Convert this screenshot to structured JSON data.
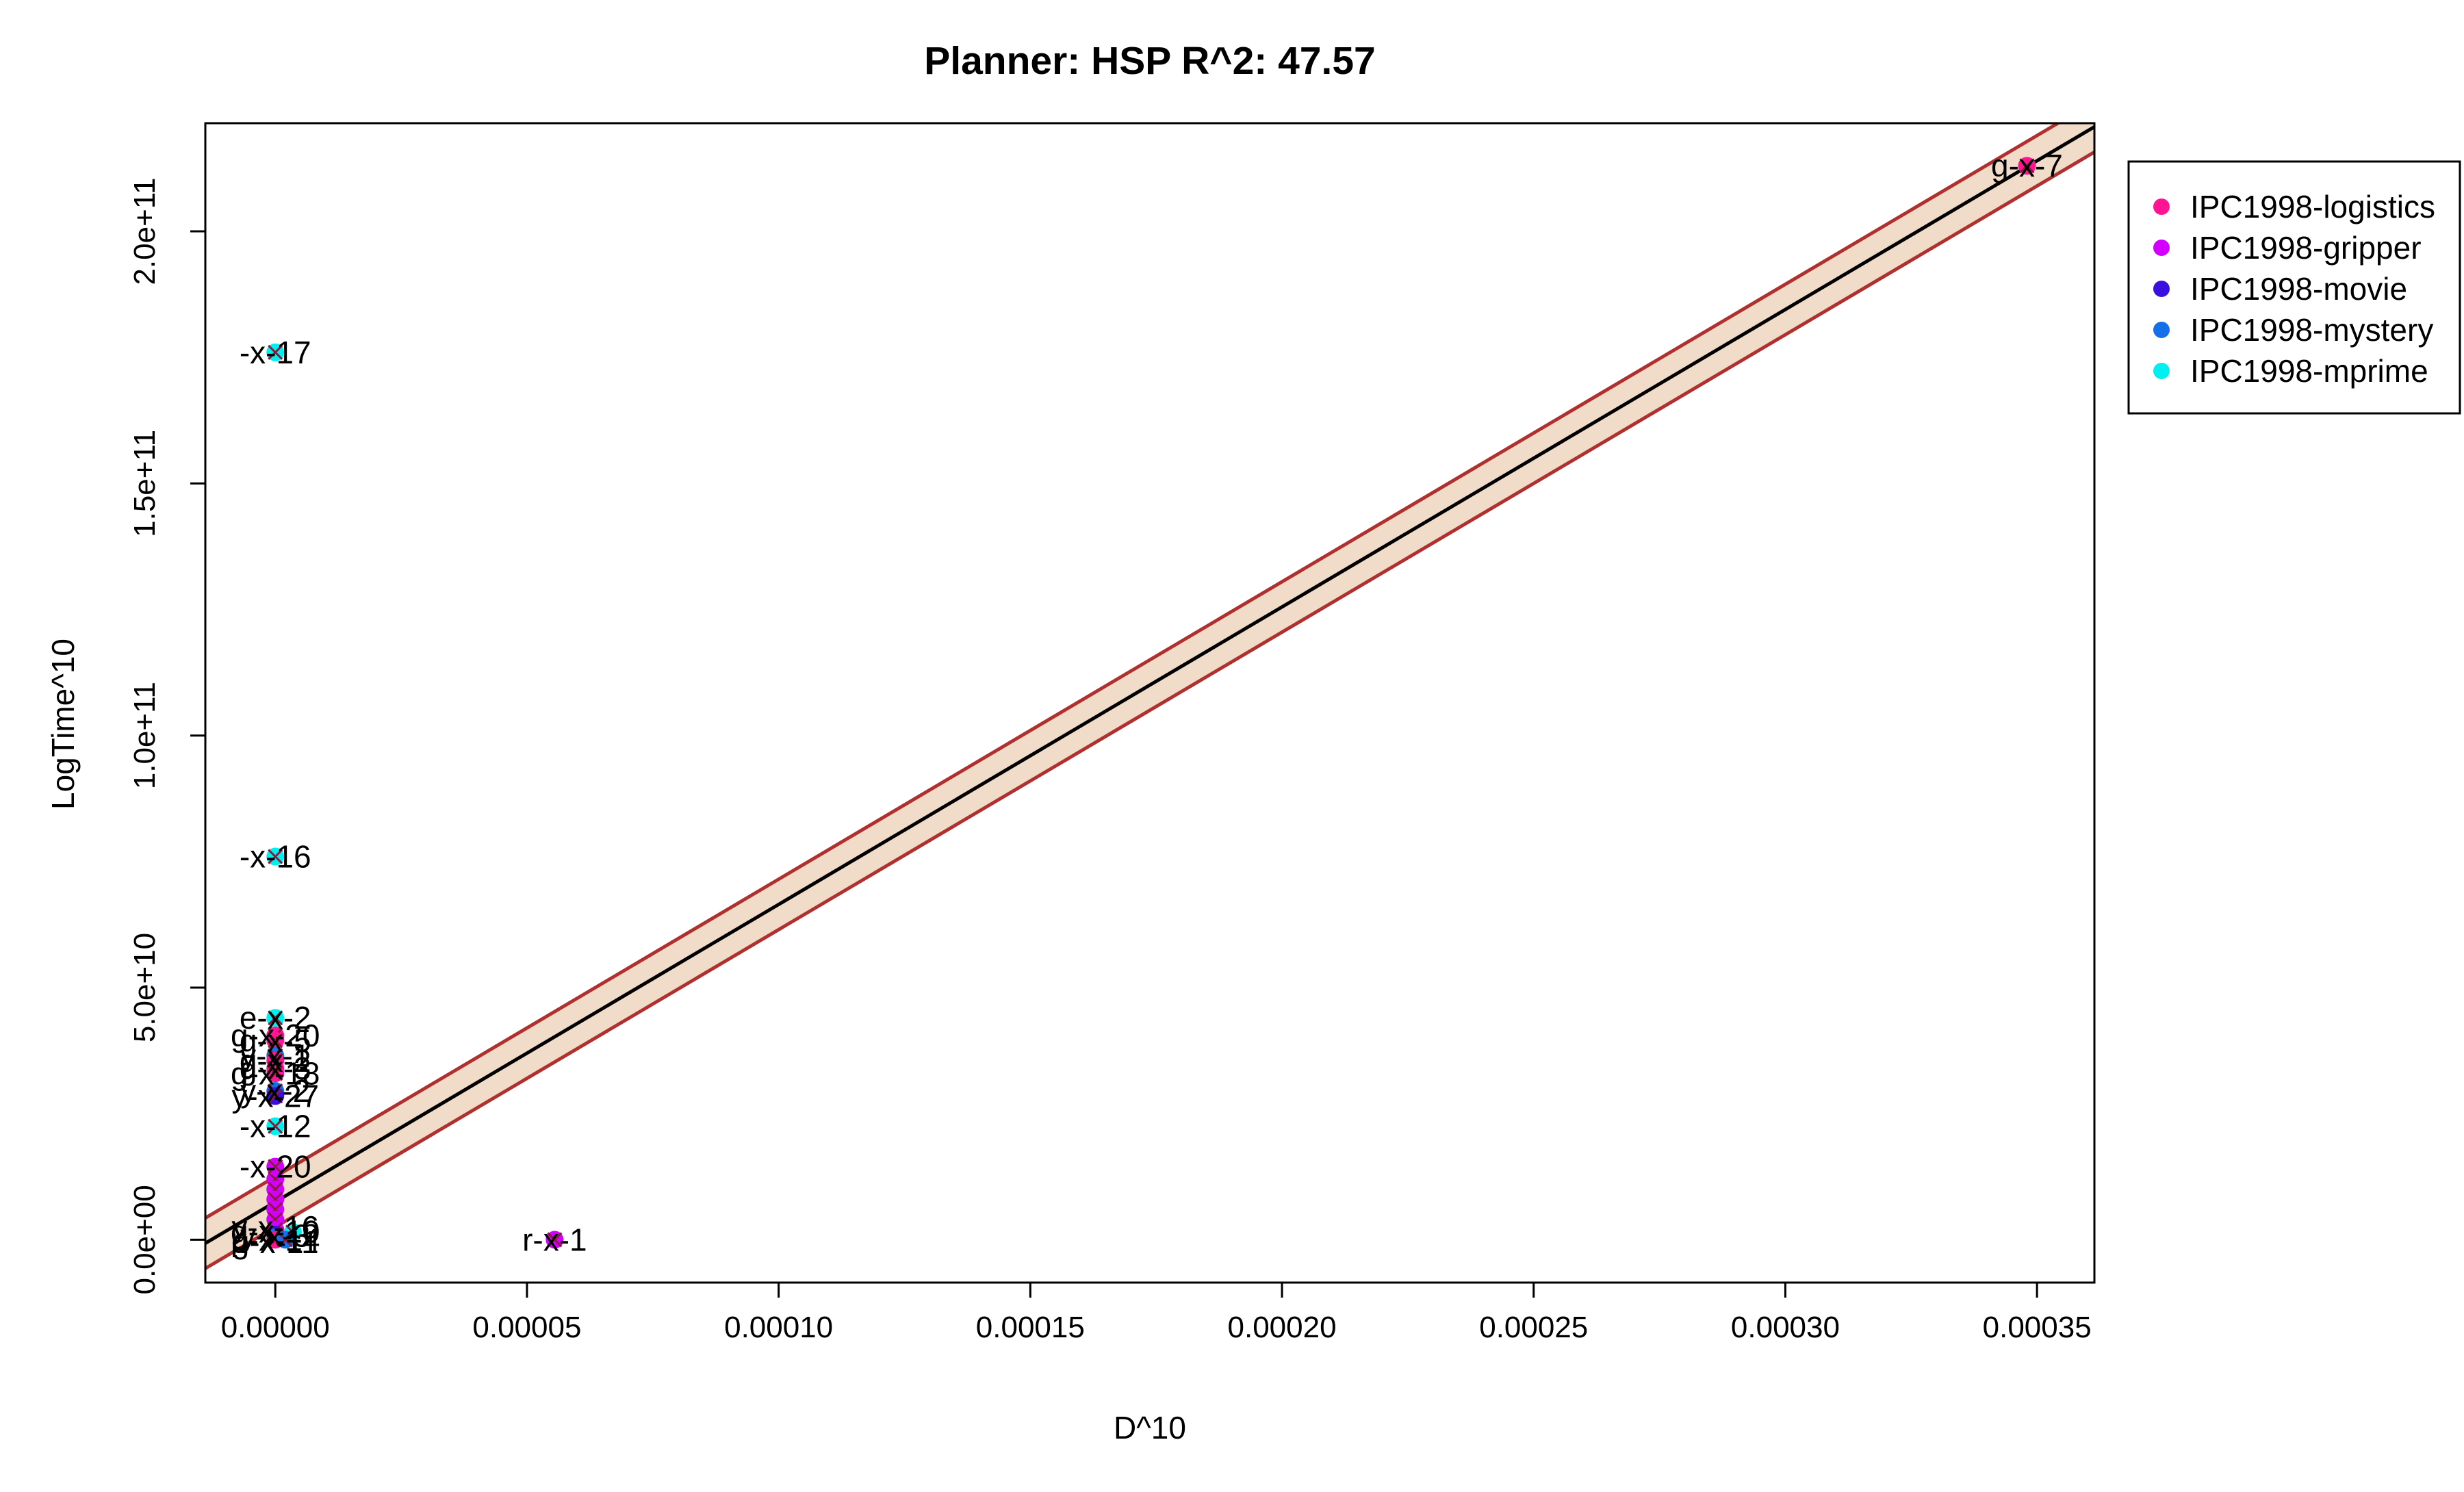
{
  "chart_data": {
    "type": "scatter",
    "title": "Planner: HSP R^2: 47.57",
    "xlabel": "D^10",
    "ylabel": "LogTime^10",
    "xlim": [
      -1.39e-05,
      0.0003614
    ],
    "ylim": [
      -8500000000.0,
      221450000000.0
    ],
    "x_ticks": [
      0,
      5e-05,
      0.0001,
      0.00015,
      0.0002,
      0.00025,
      0.0003,
      0.00035
    ],
    "x_tick_labels": [
      "0.00000",
      "0.00005",
      "0.00010",
      "0.00015",
      "0.00020",
      "0.00025",
      "0.00030",
      "0.00035"
    ],
    "y_ticks": [
      0,
      50000000000.0,
      100000000000.0,
      150000000000.0,
      200000000000.0
    ],
    "y_tick_labels": [
      "0.0e+00",
      "5.0e+10",
      "1.0e+11",
      "1.5e+11",
      "2.0e+11"
    ],
    "grid": false,
    "legend": {
      "position": "right",
      "entries": [
        {
          "name": "IPC1998-logistics",
          "color": "#ff1493"
        },
        {
          "name": "IPC1998-gripper",
          "color": "#d400ff"
        },
        {
          "name": "IPC1998-movie",
          "color": "#3a10e0"
        },
        {
          "name": "IPC1998-mystery",
          "color": "#1470e8"
        },
        {
          "name": "IPC1998-mprime",
          "color": "#00f0f0"
        }
      ]
    },
    "fit_line": {
      "intercept": 7500000000.0,
      "slope": 590000000000000.0,
      "color": "#000000"
    },
    "confidence_band": {
      "half_width": 5000000000.0,
      "fill": "#f0dcc8",
      "edge_color": "#b03030"
    },
    "labeled_points": [
      {
        "x": 0.000348,
        "y": 213000000000.0,
        "label": "g-x-7",
        "series": "IPC1998-logistics"
      },
      {
        "x": 0.0,
        "y": 176000000000.0,
        "label": "-x-17",
        "series": "IPC1998-mprime"
      },
      {
        "x": 0.0,
        "y": 76000000000.0,
        "label": "-x-16",
        "series": "IPC1998-mprime"
      },
      {
        "x": 0.0,
        "y": 44000000000.0,
        "label": "e-x-2",
        "series": "IPC1998-mprime"
      },
      {
        "x": 0.0,
        "y": 40500000000.0,
        "label": "g-x-20",
        "series": "IPC1998-logistics"
      },
      {
        "x": 0.0,
        "y": 39500000000.0,
        "label": "g-x-5",
        "series": "IPC1998-logistics"
      },
      {
        "x": 0.0,
        "y": 36500000000.0,
        "label": "y-x-1",
        "series": "IPC1998-mystery"
      },
      {
        "x": 0.0,
        "y": 35500000000.0,
        "label": "g-x-2",
        "series": "IPC1998-logistics"
      },
      {
        "x": 0.0,
        "y": 34000000000.0,
        "label": "g-x-3",
        "series": "IPC1998-logistics"
      },
      {
        "x": 0.0,
        "y": 33000000000.0,
        "label": "g-x-18",
        "series": "IPC1998-logistics"
      },
      {
        "x": 0.0,
        "y": 29500000000.0,
        "label": "y-x-2",
        "series": "IPC1998-mystery"
      },
      {
        "x": 0.0,
        "y": 28500000000.0,
        "label": "y-x-27",
        "series": "IPC1998-movie"
      },
      {
        "x": 0.0,
        "y": 22500000000.0,
        "label": "-x-12",
        "series": "IPC1998-mprime"
      },
      {
        "x": 0.0,
        "y": 14500000000.0,
        "label": "-x-20",
        "series": "IPC1998-gripper"
      },
      {
        "x": 5.55e-05,
        "y": 0.0,
        "label": "r-x-1",
        "series": "IPC1998-gripper"
      }
    ],
    "cluster_points": [
      {
        "x": 0.0,
        "y": 12000000000.0,
        "series": "IPC1998-gripper"
      },
      {
        "x": 0.0,
        "y": 10000000000.0,
        "series": "IPC1998-gripper"
      },
      {
        "x": 0.0,
        "y": 8000000000.0,
        "series": "IPC1998-gripper"
      },
      {
        "x": 0.0,
        "y": 6000000000.0,
        "series": "IPC1998-gripper"
      },
      {
        "x": 0.0,
        "y": 4000000000.0,
        "series": "IPC1998-gripper"
      },
      {
        "x": 0.0,
        "y": 2000000000.0,
        "series": "IPC1998-gripper"
      },
      {
        "x": 0.0,
        "y": 1000000000.0,
        "series": "IPC1998-movie"
      },
      {
        "x": 0.0,
        "y": 500000000.0,
        "series": "IPC1998-mystery"
      },
      {
        "x": 0.0,
        "y": 0.0,
        "series": "IPC1998-logistics"
      },
      {
        "x": 3.5e-06,
        "y": 1500000000.0,
        "series": "IPC1998-mprime"
      },
      {
        "x": 2e-06,
        "y": 0.0,
        "series": "IPC1998-mystery"
      }
    ],
    "cluster_labels": [
      {
        "x": 0.0,
        "y": 2500000000.0,
        "label": "y-x-16"
      },
      {
        "x": 0.0,
        "y": 1600000000.0,
        "label": "g-x-10"
      },
      {
        "x": 0.0,
        "y": 800000000.0,
        "label": "y-x-3"
      },
      {
        "x": 0.0,
        "y": 0.0,
        "label": "p-x-14"
      },
      {
        "x": 0.0,
        "y": -500000000.0,
        "label": "g-x-11"
      }
    ]
  }
}
